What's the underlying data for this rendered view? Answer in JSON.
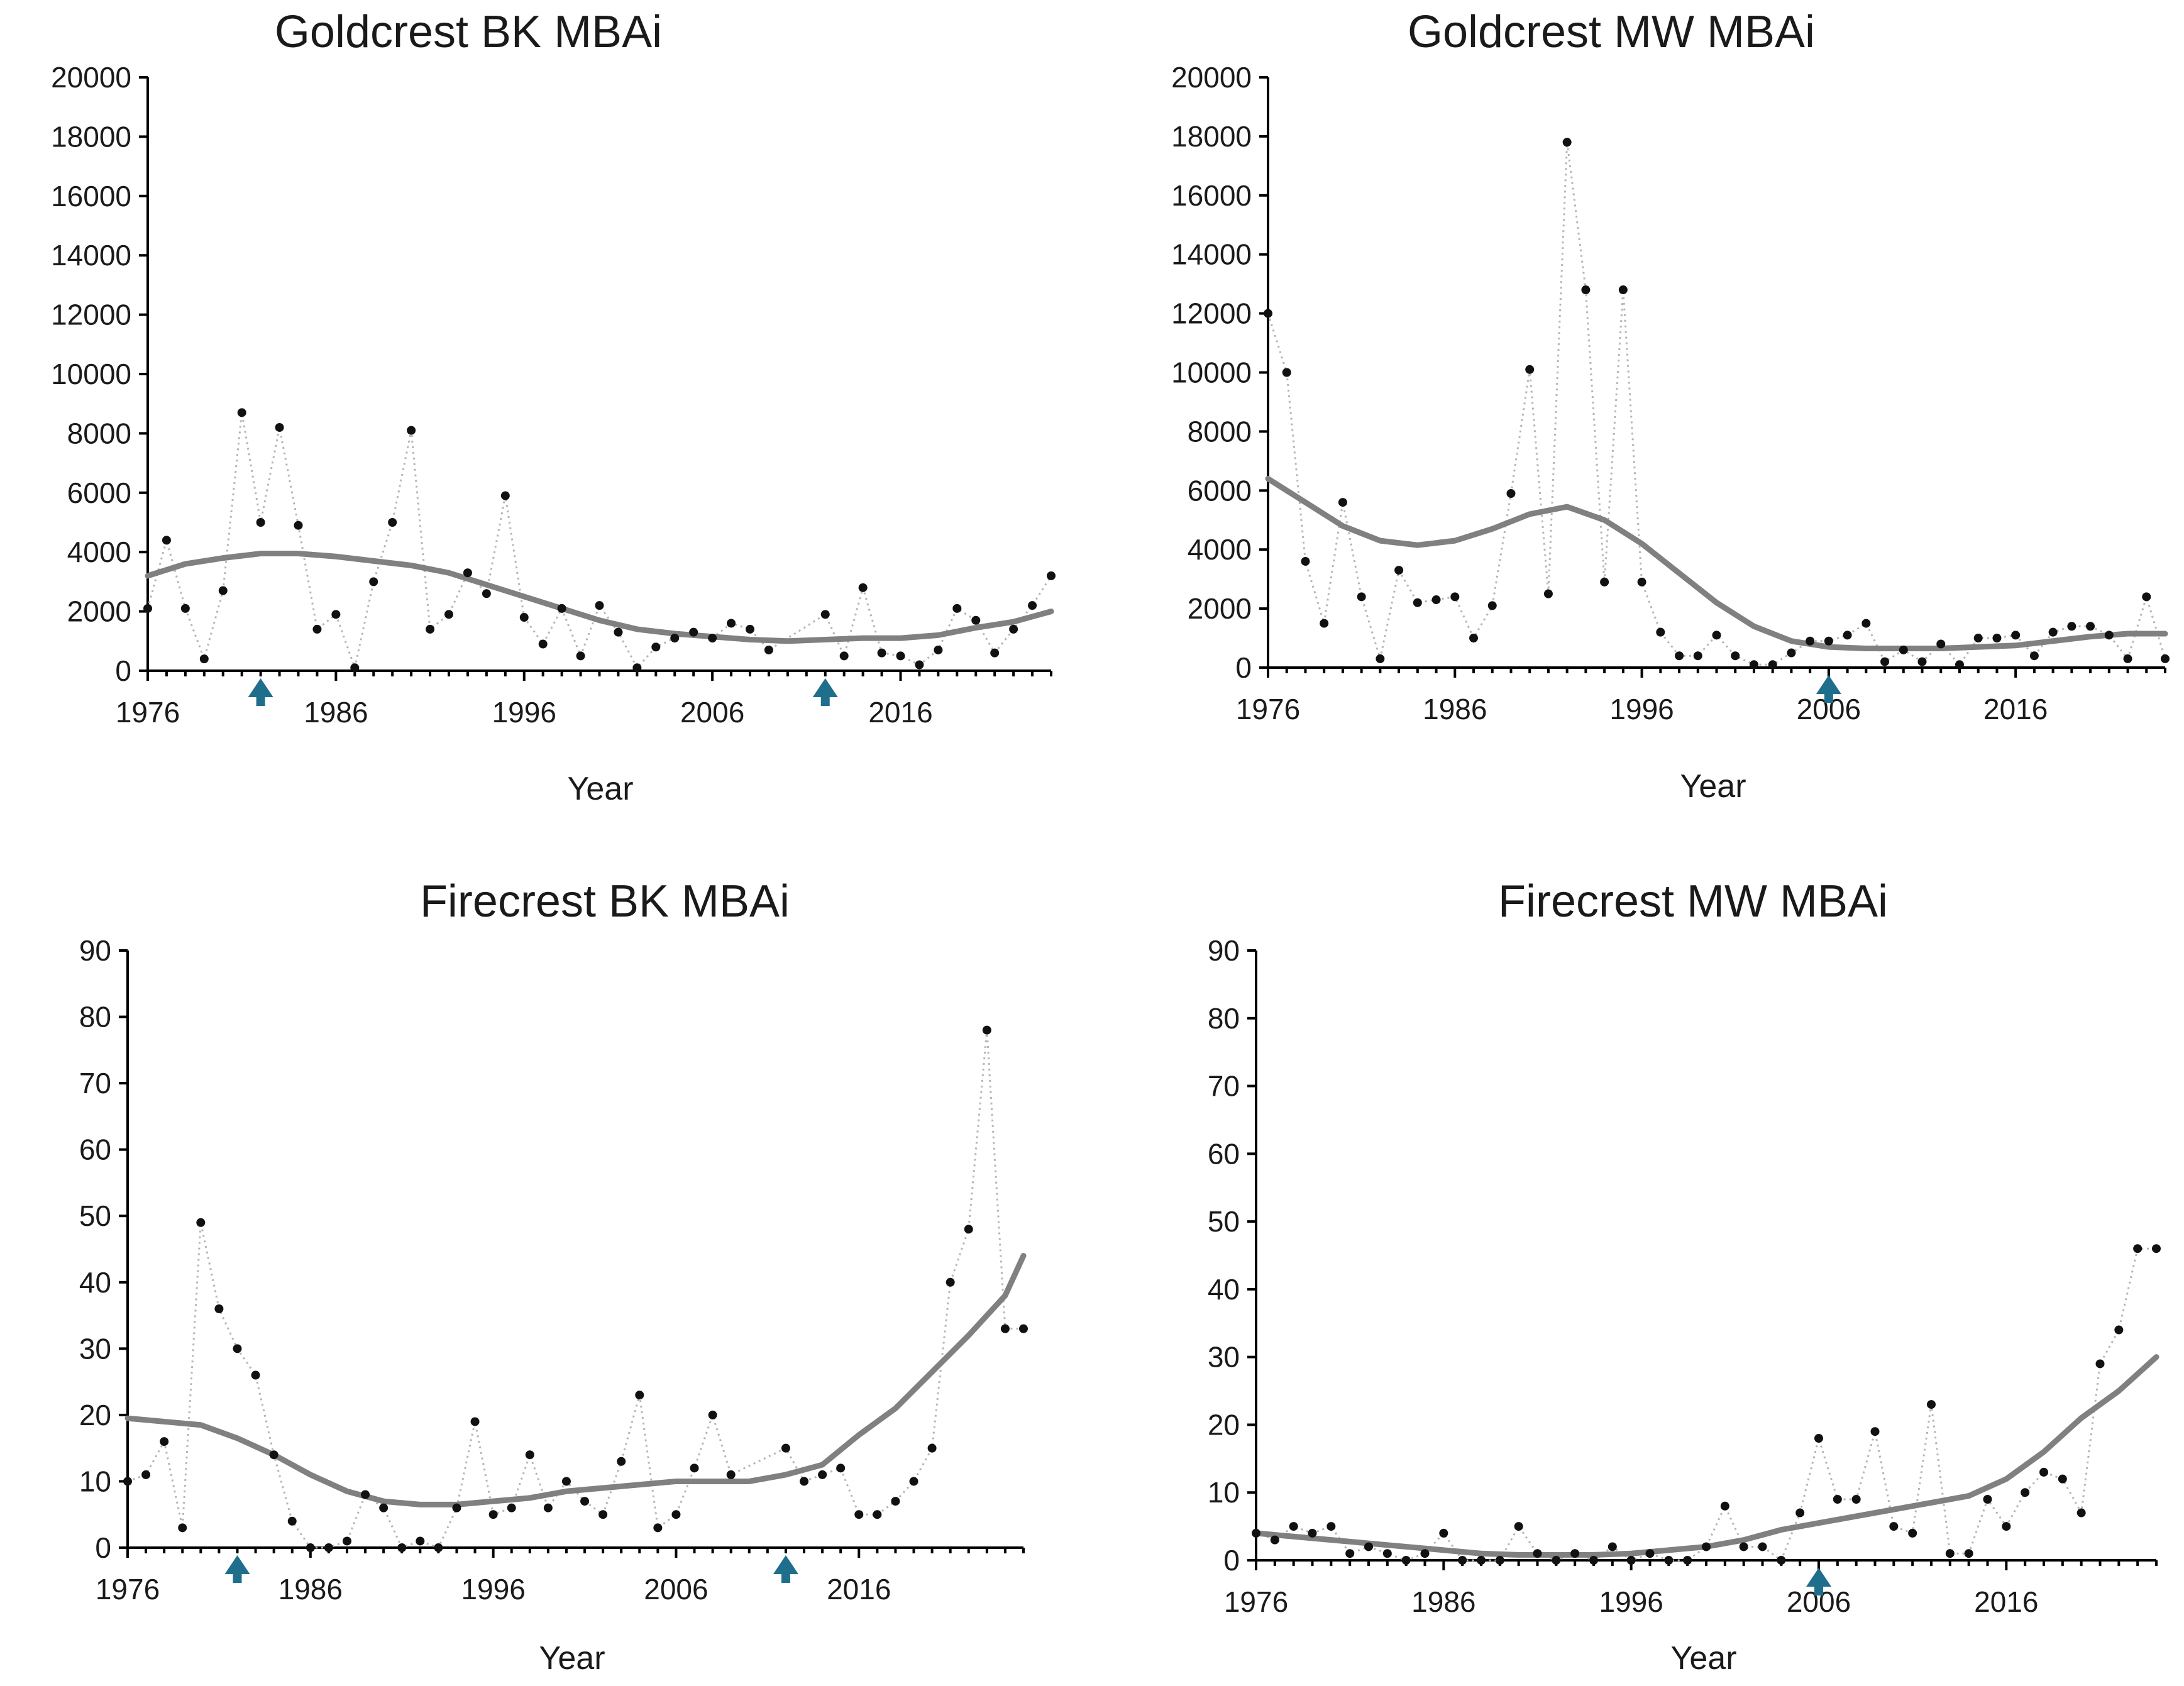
{
  "colors": {
    "points": "#111111",
    "connector": "#b5b5b5",
    "trend": "#808080",
    "marker": "#1f6e8c"
  },
  "chart_data": [
    {
      "id": "goldcrest-bk",
      "type": "line",
      "title": "Goldcrest BK MBAi",
      "xlabel": "Year",
      "ylabel": "",
      "xlim": [
        1976,
        2024
      ],
      "ylim": [
        0,
        20000
      ],
      "xticks": [
        "1976",
        "1986",
        "1996",
        "2006",
        "2016"
      ],
      "yticks": [
        "0",
        "2000",
        "4000",
        "6000",
        "8000",
        "10000",
        "12000",
        "14000",
        "16000",
        "18000",
        "20000"
      ],
      "grid": false,
      "markers_x": [
        1982,
        2012
      ],
      "series": [
        {
          "kind": "observed",
          "x": [
            1976,
            1977,
            1978,
            1979,
            1980,
            1981,
            1982,
            1983,
            1984,
            1985,
            1986,
            1987,
            1988,
            1989,
            1990,
            1991,
            1992,
            1993,
            1994,
            1995,
            1996,
            1997,
            1998,
            1999,
            2000,
            2001,
            2002,
            2003,
            2004,
            2005,
            2006,
            2007,
            2008,
            2009,
            2012,
            2013,
            2014,
            2015,
            2016,
            2017,
            2018,
            2019,
            2020,
            2021,
            2022,
            2023,
            2024
          ],
          "y": [
            2100,
            4400,
            2100,
            400,
            2700,
            8700,
            5000,
            8200,
            4900,
            1400,
            1900,
            100,
            3000,
            5000,
            8100,
            1400,
            1900,
            3300,
            2600,
            5900,
            1800,
            900,
            2100,
            500,
            2200,
            1300,
            100,
            800,
            1100,
            1300,
            1100,
            1600,
            1400,
            700,
            1900,
            500,
            2800,
            600,
            500,
            200,
            700,
            2100,
            1700,
            600,
            1400,
            2200,
            3200
          ]
        },
        {
          "kind": "trend",
          "x": [
            1976,
            1978,
            1980,
            1982,
            1984,
            1986,
            1988,
            1990,
            1992,
            1994,
            1996,
            1998,
            2000,
            2002,
            2004,
            2006,
            2008,
            2010,
            2012,
            2014,
            2016,
            2018,
            2020,
            2022,
            2024
          ],
          "y": [
            3200,
            3600,
            3800,
            3950,
            3950,
            3850,
            3700,
            3550,
            3300,
            2900,
            2500,
            2100,
            1700,
            1400,
            1250,
            1150,
            1050,
            1000,
            1050,
            1100,
            1100,
            1200,
            1450,
            1650,
            2000
          ]
        }
      ]
    },
    {
      "id": "goldcrest-mw",
      "type": "line",
      "title": "Goldcrest MW MBAi",
      "xlabel": "Year",
      "ylabel": "",
      "xlim": [
        1976,
        2024
      ],
      "ylim": [
        0,
        20000
      ],
      "xticks": [
        "1976",
        "1986",
        "1996",
        "2006",
        "2016"
      ],
      "yticks": [
        "0",
        "2000",
        "4000",
        "6000",
        "8000",
        "10000",
        "12000",
        "14000",
        "16000",
        "18000",
        "20000"
      ],
      "grid": false,
      "markers_x": [
        2006
      ],
      "series": [
        {
          "kind": "observed",
          "x": [
            1976,
            1977,
            1978,
            1979,
            1980,
            1981,
            1982,
            1983,
            1984,
            1985,
            1986,
            1987,
            1988,
            1989,
            1990,
            1991,
            1992,
            1993,
            1994,
            1995,
            1996,
            1997,
            1998,
            1999,
            2000,
            2001,
            2002,
            2003,
            2004,
            2005,
            2006,
            2007,
            2008,
            2009,
            2010,
            2011,
            2012,
            2013,
            2014,
            2015,
            2016,
            2017,
            2018,
            2019,
            2020,
            2021,
            2022,
            2023,
            2024
          ],
          "y": [
            12000,
            10000,
            3600,
            1500,
            5600,
            2400,
            300,
            3300,
            2200,
            2300,
            2400,
            1000,
            2100,
            5900,
            10100,
            2500,
            17800,
            12800,
            2900,
            12800,
            2900,
            1200,
            400,
            400,
            1100,
            400,
            100,
            100,
            500,
            900,
            900,
            1100,
            1500,
            200,
            600,
            200,
            800,
            100,
            1000,
            1000,
            1100,
            400,
            1200,
            1400,
            1400,
            1100,
            300,
            2400,
            300
          ]
        },
        {
          "kind": "trend",
          "x": [
            1976,
            1978,
            1980,
            1982,
            1984,
            1986,
            1988,
            1990,
            1992,
            1994,
            1996,
            1998,
            2000,
            2002,
            2004,
            2006,
            2008,
            2010,
            2012,
            2014,
            2016,
            2018,
            2020,
            2022,
            2024
          ],
          "y": [
            6400,
            5600,
            4800,
            4300,
            4150,
            4300,
            4700,
            5200,
            5450,
            5000,
            4200,
            3200,
            2200,
            1400,
            900,
            700,
            650,
            650,
            650,
            700,
            750,
            900,
            1050,
            1150,
            1150
          ]
        }
      ]
    },
    {
      "id": "firecrest-bk",
      "type": "line",
      "title": "Firecrest BK MBAi",
      "xlabel": "Year",
      "ylabel": "",
      "xlim": [
        1976,
        2025
      ],
      "ylim": [
        0,
        90
      ],
      "xticks": [
        "1976",
        "1986",
        "1996",
        "2006",
        "2016"
      ],
      "yticks": [
        "0",
        "10",
        "20",
        "30",
        "40",
        "50",
        "60",
        "70",
        "80",
        "90"
      ],
      "grid": false,
      "markers_x": [
        1982,
        2012
      ],
      "series": [
        {
          "kind": "observed",
          "x": [
            1976,
            1977,
            1978,
            1979,
            1980,
            1981,
            1982,
            1983,
            1984,
            1985,
            1986,
            1987,
            1988,
            1989,
            1990,
            1991,
            1992,
            1993,
            1994,
            1995,
            1996,
            1997,
            1998,
            1999,
            2000,
            2001,
            2002,
            2003,
            2004,
            2005,
            2006,
            2007,
            2008,
            2009,
            2012,
            2013,
            2014,
            2015,
            2016,
            2017,
            2018,
            2019,
            2020,
            2021,
            2022,
            2023,
            2024,
            2025
          ],
          "y": [
            10,
            11,
            16,
            3,
            49,
            36,
            30,
            26,
            14,
            4,
            0,
            0,
            1,
            8,
            6,
            0,
            1,
            0,
            6,
            19,
            5,
            6,
            14,
            6,
            10,
            7,
            5,
            13,
            23,
            3,
            5,
            12,
            20,
            11,
            15,
            10,
            11,
            12,
            5,
            5,
            7,
            10,
            15,
            40,
            48,
            78,
            33,
            33
          ]
        },
        {
          "kind": "trend",
          "x": [
            1976,
            1978,
            1980,
            1982,
            1984,
            1986,
            1988,
            1990,
            1992,
            1994,
            1996,
            1998,
            2000,
            2002,
            2004,
            2006,
            2008,
            2010,
            2012,
            2014,
            2016,
            2018,
            2020,
            2022,
            2024,
            2025
          ],
          "y": [
            19.5,
            19,
            18.5,
            16.5,
            14,
            11,
            8.5,
            7,
            6.5,
            6.5,
            7,
            7.5,
            8.5,
            9,
            9.5,
            10,
            10,
            10,
            11,
            12.5,
            17,
            21,
            26.5,
            32,
            38,
            44
          ]
        }
      ]
    },
    {
      "id": "firecrest-mw",
      "type": "line",
      "title": "Firecrest MW MBAi",
      "xlabel": "Year",
      "ylabel": "",
      "xlim": [
        1976,
        2024
      ],
      "ylim": [
        0,
        90
      ],
      "xticks": [
        "1976",
        "1986",
        "1996",
        "2006",
        "2016"
      ],
      "yticks": [
        "0",
        "10",
        "20",
        "30",
        "40",
        "50",
        "60",
        "70",
        "80",
        "90"
      ],
      "grid": false,
      "markers_x": [
        2006
      ],
      "series": [
        {
          "kind": "observed",
          "x": [
            1976,
            1977,
            1978,
            1979,
            1980,
            1981,
            1982,
            1983,
            1984,
            1985,
            1986,
            1987,
            1988,
            1989,
            1990,
            1991,
            1992,
            1993,
            1994,
            1995,
            1996,
            1997,
            1998,
            1999,
            2000,
            2001,
            2002,
            2003,
            2004,
            2005,
            2006,
            2007,
            2008,
            2009,
            2010,
            2011,
            2012,
            2013,
            2014,
            2015,
            2016,
            2017,
            2018,
            2019,
            2020,
            2021,
            2022,
            2023,
            2024
          ],
          "y": [
            4,
            3,
            5,
            4,
            5,
            1,
            2,
            1,
            0,
            1,
            4,
            0,
            0,
            0,
            5,
            1,
            0,
            1,
            0,
            2,
            0,
            1,
            0,
            0,
            2,
            8,
            2,
            2,
            0,
            7,
            18,
            9,
            9,
            19,
            5,
            4,
            23,
            1,
            1,
            9,
            5,
            10,
            13,
            12,
            7,
            29,
            34,
            46,
            46
          ]
        },
        {
          "kind": "trend",
          "x": [
            1976,
            1978,
            1980,
            1982,
            1984,
            1986,
            1988,
            1990,
            1992,
            1994,
            1996,
            1998,
            2000,
            2002,
            2004,
            2006,
            2008,
            2010,
            2012,
            2014,
            2016,
            2018,
            2020,
            2022,
            2024
          ],
          "y": [
            4,
            3.5,
            3,
            2.5,
            2,
            1.5,
            1,
            0.8,
            0.8,
            0.8,
            1,
            1.5,
            2,
            3,
            4.5,
            5.5,
            6.5,
            7.5,
            8.5,
            9.5,
            12,
            16,
            21,
            25,
            30
          ]
        }
      ]
    }
  ]
}
